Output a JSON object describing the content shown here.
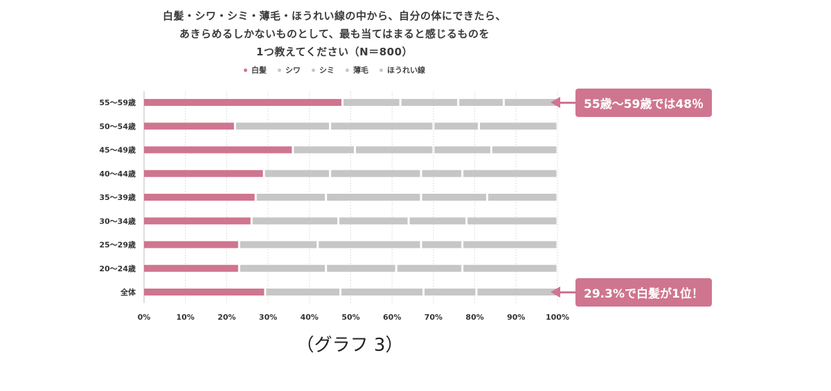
{
  "title_lines": [
    "白髪・シワ・シミ・薄毛・ほうれい線の中から、自分の体にできたら、",
    "あきらめるしかないものとして、最も当てはまると感じるものを",
    "1つ教えてください（N＝800）"
  ],
  "colors": {
    "primary": "#cf7590",
    "secondary": "#c6c6c6",
    "grid": "#dedede",
    "axis_text": "#333333"
  },
  "chart_data": {
    "type": "bar",
    "orientation": "horizontal",
    "stacked": true,
    "percent": true,
    "categories": [
      "55〜59歳",
      "50〜54歳",
      "45〜49歳",
      "40〜44歳",
      "35〜39歳",
      "30〜34歳",
      "25〜29歳",
      "20〜24歳",
      "全体"
    ],
    "series": [
      {
        "name": "白髪",
        "color": "#cf7590",
        "values": [
          48,
          22,
          36,
          29,
          27,
          26,
          23,
          23,
          29.3
        ]
      },
      {
        "name": "シワ",
        "color": "#c6c6c6",
        "values": [
          14,
          23,
          15,
          16,
          17,
          21,
          19,
          21,
          18.2
        ]
      },
      {
        "name": "シミ",
        "color": "#c6c6c6",
        "values": [
          14,
          25,
          19,
          22,
          23,
          17,
          25,
          17,
          20.1
        ]
      },
      {
        "name": "薄毛",
        "color": "#c6c6c6",
        "values": [
          11,
          11,
          14,
          10,
          16,
          14,
          10,
          16,
          12.8
        ]
      },
      {
        "name": "ほうれい線",
        "color": "#c6c6c6",
        "values": [
          13,
          19,
          16,
          23,
          17,
          22,
          23,
          23,
          19.6
        ]
      }
    ],
    "x_ticks": [
      "0%",
      "10%",
      "20%",
      "30%",
      "40%",
      "50%",
      "60%",
      "70%",
      "80%",
      "90%",
      "100%"
    ],
    "xlim": [
      0,
      100
    ],
    "legend_position": "top",
    "grid": true,
    "annotations": [
      {
        "text": "55歳〜59歳では48％",
        "category_index": 0
      },
      {
        "text": "29.3%で白髪が1位！",
        "category_index": 8
      }
    ]
  },
  "caption": "（グラフ 3）"
}
